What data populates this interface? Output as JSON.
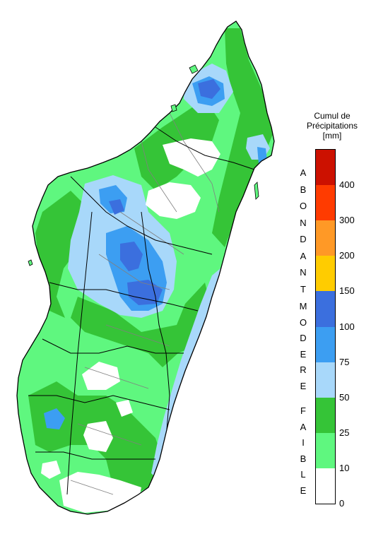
{
  "legend": {
    "title_lines": [
      "Cumul de",
      "Précipitations",
      "[mm]"
    ],
    "classes": [
      {
        "from": 0,
        "to": 10,
        "color": "#ffffff"
      },
      {
        "from": 10,
        "to": 25,
        "color": "#5ff77f"
      },
      {
        "from": 25,
        "to": 50,
        "color": "#35c437"
      },
      {
        "from": 50,
        "to": 75,
        "color": "#a8d8fa"
      },
      {
        "from": 75,
        "to": 100,
        "color": "#3c9ef2"
      },
      {
        "from": 100,
        "to": 150,
        "color": "#3b6fde"
      },
      {
        "from": 150,
        "to": 200,
        "color": "#ffcc00"
      },
      {
        "from": 200,
        "to": 300,
        "color": "#ff9926"
      },
      {
        "from": 300,
        "to": 400,
        "color": "#ff3b00"
      },
      {
        "from": 400,
        "to": 500,
        "color": "#cc1100"
      }
    ],
    "tick_labels": [
      "0",
      "10",
      "25",
      "50",
      "75",
      "100",
      "150",
      "200",
      "300",
      "400"
    ],
    "categories": [
      {
        "name": "ABONDANT",
        "letters": [
          "A",
          "B",
          "O",
          "N",
          "D",
          "A",
          "N",
          "T"
        ]
      },
      {
        "name": "MODERE",
        "letters": [
          "M",
          "O",
          "D",
          "E",
          "R",
          "E"
        ]
      },
      {
        "name": "FAIBLE",
        "letters": [
          "F",
          "A",
          "I",
          "B",
          "L",
          "E"
        ]
      }
    ]
  },
  "map": {
    "country": "Madagascar",
    "colors": {
      "land": "#5ff77f",
      "moderate_rain": "#35c437",
      "light_blue": "#a8d8fa",
      "mid_blue": "#3c9ef2",
      "dark_blue": "#3b6fde",
      "dry": "#ffffff",
      "border": "#000000",
      "district": "#808080"
    }
  }
}
